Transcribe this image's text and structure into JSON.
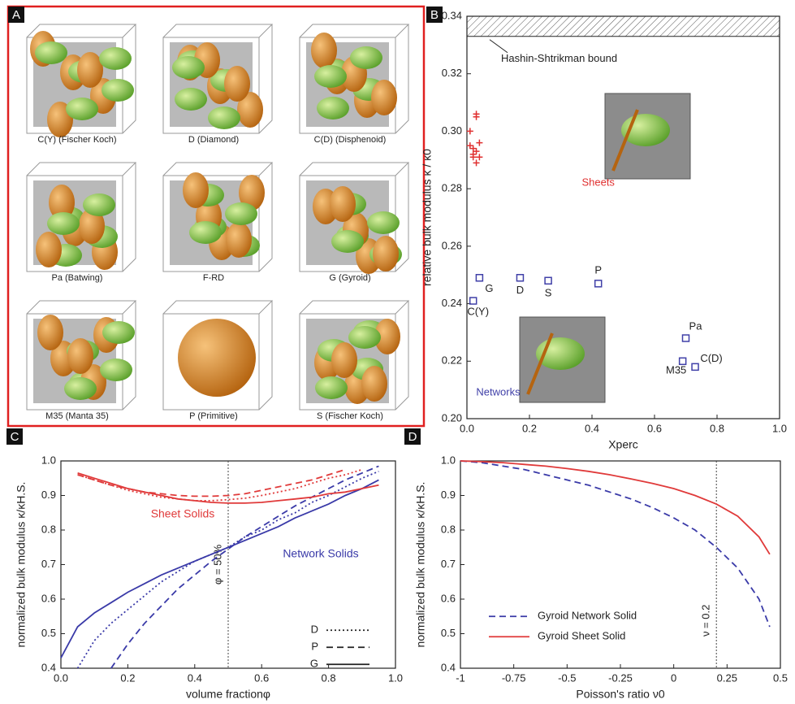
{
  "panel_a": {
    "panel": "A",
    "captions": [
      "C(Y) (Fischer Koch)",
      "D (Diamond)",
      "C(D) (Disphenoid)",
      "Pa (Batwing)",
      "F-RD",
      "G (Gyroid)",
      "M35 (Manta 35)",
      "P (Primitive)",
      "S (Fischer Koch)"
    ]
  },
  "chart_data": [
    {
      "type": "scatter",
      "panel": "B",
      "xlabel": "Xperc",
      "ylabel": "relative bulk modulus κ / κ0",
      "xlim": [
        0,
        1
      ],
      "ylim": [
        0.2,
        0.34
      ],
      "xticks": [
        {
          "value": 0,
          "label": "0.0"
        },
        {
          "value": 0.2,
          "label": "0.2"
        },
        {
          "value": 0.4,
          "label": "0.4"
        },
        {
          "value": 0.6,
          "label": "0.6"
        },
        {
          "value": 0.8,
          "label": "0.8"
        },
        {
          "value": 1,
          "label": "1.0"
        }
      ],
      "yticks": [
        {
          "value": 0.2,
          "label": "0.20"
        },
        0.22,
        0.24,
        0.26,
        0.28,
        {
          "value": 0.3,
          "label": "0.30"
        },
        0.32,
        0.34
      ],
      "bound": {
        "value": 0.333,
        "label": "Hashin-Shtrikman bound"
      },
      "series": [
        {
          "name": "Sheets",
          "color": "#e03030",
          "marker": "plus",
          "x": [
            0.01,
            0.03,
            0.03,
            0.01,
            0.02,
            0.03,
            0.02,
            0.04,
            0.03,
            0.02,
            0.04
          ],
          "values": [
            0.3,
            0.306,
            0.305,
            0.295,
            0.294,
            0.293,
            0.291,
            0.296,
            0.289,
            0.292,
            0.291
          ]
        },
        {
          "name": "Networks",
          "color": "#4040a8",
          "marker": "square",
          "x": [
            0.04,
            0.17,
            0.26,
            0.42,
            0.02,
            0.7,
            0.73,
            0.69
          ],
          "values": [
            0.249,
            0.249,
            0.248,
            0.247,
            0.241,
            0.228,
            0.218,
            0.22
          ],
          "labels": [
            "G",
            "D",
            "S",
            "P",
            "C(Y)",
            "Pa",
            "C(D)",
            "M35"
          ]
        }
      ]
    },
    {
      "type": "line",
      "panel": "C",
      "xlabel": "volume fractionφ",
      "ylabel": "normalized bulk modulus κ/κH.S.",
      "xlim": [
        0,
        1
      ],
      "ylim": [
        0.4,
        1
      ],
      "xticks": [
        {
          "value": 0,
          "label": "0.0"
        },
        {
          "value": 0.2,
          "label": "0.2"
        },
        {
          "value": 0.4,
          "label": "0.4"
        },
        {
          "value": 0.6,
          "label": "0.6"
        },
        {
          "value": 0.8,
          "label": "0.8"
        },
        {
          "value": 1,
          "label": "1.0"
        }
      ],
      "yticks": [
        0.4,
        0.5,
        0.6,
        0.7,
        0.8,
        0.9,
        {
          "value": 1,
          "label": "1.0"
        }
      ],
      "ref_line": {
        "x": 0.5,
        "label": "φ = 50%"
      },
      "annotations": [
        "Sheet Solids",
        "Network Solids"
      ],
      "legend": [
        {
          "name": "G",
          "dash": "solid"
        },
        {
          "name": "P",
          "dash": "dashed"
        },
        {
          "name": "D",
          "dash": "dotted"
        }
      ],
      "x": [
        0,
        0.05,
        0.1,
        0.15,
        0.2,
        0.25,
        0.3,
        0.35,
        0.4,
        0.45,
        0.5,
        0.55,
        0.6,
        0.65,
        0.7,
        0.75,
        0.8,
        0.85,
        0.9,
        0.95
      ],
      "series": [
        {
          "color": "#3a3aa8",
          "dash": "solid",
          "values": [
            0.43,
            0.52,
            0.56,
            0.59,
            0.62,
            0.645,
            0.67,
            0.69,
            0.71,
            0.73,
            0.75,
            0.77,
            0.79,
            0.81,
            0.835,
            0.855,
            0.875,
            0.9,
            0.92,
            0.945
          ]
        },
        {
          "color": "#3a3aa8",
          "dash": "dashed",
          "values": [
            null,
            null,
            null,
            0.4,
            0.47,
            0.53,
            0.58,
            0.63,
            0.67,
            0.71,
            0.745,
            0.78,
            0.81,
            0.84,
            0.87,
            0.895,
            0.92,
            0.945,
            0.965,
            0.985
          ]
        },
        {
          "color": "#3a3aa8",
          "dash": "dotted",
          "values": [
            null,
            0.4,
            0.48,
            0.53,
            0.57,
            0.61,
            0.65,
            0.68,
            0.71,
            0.73,
            0.75,
            0.78,
            0.8,
            0.83,
            0.85,
            0.88,
            0.9,
            0.925,
            0.95,
            0.97
          ]
        },
        {
          "color": "#e03a3a",
          "dash": "solid",
          "values": [
            null,
            0.965,
            0.95,
            0.935,
            0.92,
            0.91,
            0.9,
            0.89,
            0.885,
            0.88,
            0.878,
            0.878,
            0.88,
            0.885,
            0.89,
            0.895,
            0.905,
            0.91,
            0.92,
            0.93
          ]
        },
        {
          "color": "#e03a3a",
          "dash": "dashed",
          "values": [
            null,
            0.96,
            0.945,
            0.93,
            0.92,
            0.91,
            0.905,
            0.9,
            0.898,
            0.898,
            0.9,
            0.905,
            0.915,
            0.925,
            0.935,
            0.945,
            0.96,
            0.975,
            null,
            null
          ]
        },
        {
          "color": "#e03a3a",
          "dash": "dotted",
          "values": [
            null,
            0.96,
            0.945,
            0.93,
            0.915,
            0.905,
            0.895,
            0.89,
            0.885,
            0.885,
            0.888,
            0.892,
            0.9,
            0.91,
            0.92,
            0.935,
            0.95,
            0.96,
            0.975,
            null
          ]
        }
      ]
    },
    {
      "type": "line",
      "panel": "D",
      "xlabel": "Poisson's ratio ν0",
      "ylabel": "normalized bulk modulus κ/κH.S.",
      "xlim": [
        -1,
        0.5
      ],
      "ylim": [
        0.4,
        1
      ],
      "xticks": [
        -1,
        -0.75,
        -0.5,
        -0.25,
        0,
        0.25,
        0.5
      ],
      "yticks": [
        0.4,
        0.5,
        0.6,
        0.7,
        0.8,
        0.9,
        {
          "value": 1,
          "label": "1.0"
        }
      ],
      "ref_line": {
        "x": 0.2,
        "label": "ν = 0.2"
      },
      "x": [
        -1,
        -0.9,
        -0.8,
        -0.7,
        -0.6,
        -0.5,
        -0.4,
        -0.3,
        -0.2,
        -0.1,
        0,
        0.1,
        0.2,
        0.3,
        0.4,
        0.45
      ],
      "series": [
        {
          "name": "Gyroid Network Solid",
          "color": "#3a3aa8",
          "dash": "dashed",
          "values": [
            1,
            0.995,
            0.985,
            0.975,
            0.96,
            0.945,
            0.93,
            0.91,
            0.89,
            0.865,
            0.835,
            0.8,
            0.75,
            0.69,
            0.6,
            0.52
          ]
        },
        {
          "name": "Gyroid Sheet Solid",
          "color": "#e03a3a",
          "dash": "solid",
          "values": [
            1,
            0.998,
            0.995,
            0.99,
            0.985,
            0.978,
            0.97,
            0.96,
            0.948,
            0.935,
            0.92,
            0.9,
            0.875,
            0.84,
            0.78,
            0.73
          ]
        }
      ]
    }
  ]
}
